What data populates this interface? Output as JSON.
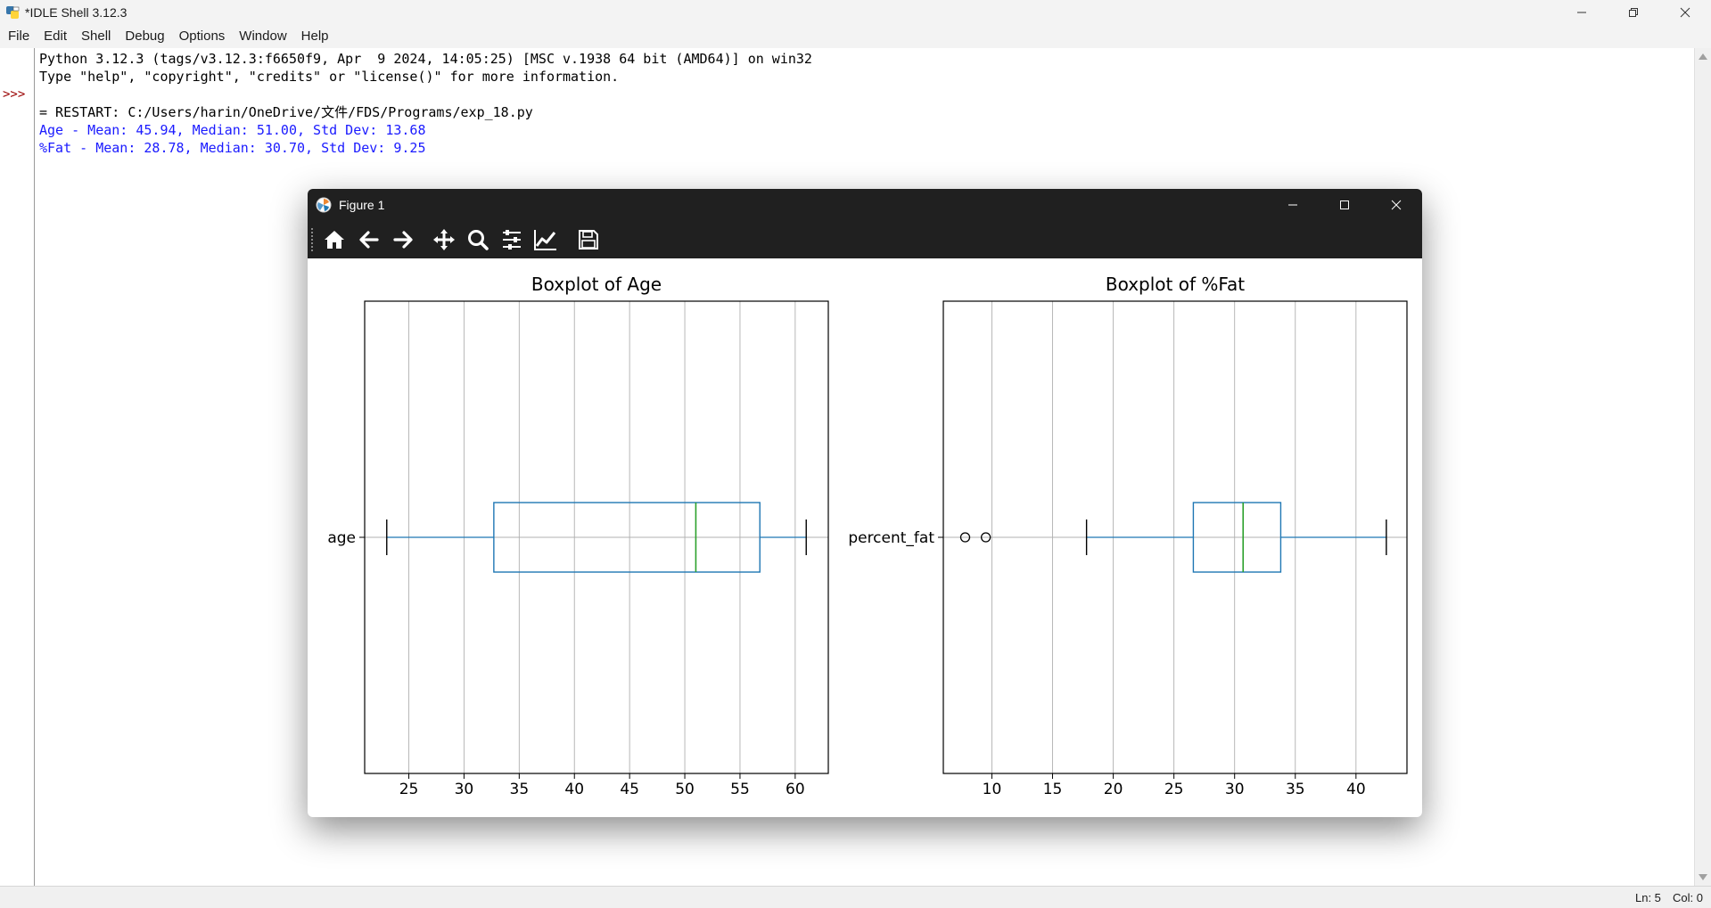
{
  "idle": {
    "window_title": "*IDLE Shell 3.12.3",
    "menu": [
      "File",
      "Edit",
      "Shell",
      "Debug",
      "Options",
      "Window",
      "Help"
    ],
    "prompt": ">>>",
    "banner_line1": "Python 3.12.3 (tags/v3.12.3:f6650f9, Apr  9 2024, 14:05:25) [MSC v.1938 64 bit (AMD64)] on win32",
    "banner_line2": "Type \"help\", \"copyright\", \"credits\" or \"license()\" for more information.",
    "restart_line": "= RESTART: C:/Users/harin/OneDrive/文件/FDS/Programs/exp_18.py",
    "output_line1": "Age - Mean: 45.94, Median: 51.00, Std Dev: 13.68",
    "output_line2": "%Fat - Mean: 28.78, Median: 30.70, Std Dev: 9.25",
    "status_ln": "Ln: 5",
    "status_col": "Col: 0"
  },
  "figure": {
    "window_title": "Figure 1",
    "toolbar": [
      "home-icon",
      "back-icon",
      "forward-icon",
      "pan-icon",
      "zoom-icon",
      "subplots-icon",
      "edit-axis-icon",
      "save-icon"
    ]
  },
  "chart_data": [
    {
      "type": "boxplot",
      "orientation": "horizontal",
      "title": "Boxplot of Age",
      "category": "age",
      "xlim": [
        21,
        63
      ],
      "xticks": [
        25,
        30,
        35,
        40,
        45,
        50,
        55,
        60
      ],
      "whisker_low": 23,
      "q1": 32.7,
      "median": 51,
      "q3": 56.8,
      "whisker_high": 61,
      "outliers": [],
      "grid": "x",
      "box_color": "#1f77b4",
      "median_color": "#2ca02c"
    },
    {
      "type": "boxplot",
      "orientation": "horizontal",
      "title": "Boxplot of %Fat",
      "category": "percent_fat",
      "xlim": [
        6,
        44.2
      ],
      "xticks": [
        10,
        15,
        20,
        25,
        30,
        35,
        40
      ],
      "whisker_low": 17.8,
      "q1": 26.6,
      "median": 30.7,
      "q3": 33.8,
      "whisker_high": 42.5,
      "outliers": [
        7.8,
        9.5
      ],
      "grid": "x",
      "box_color": "#1f77b4",
      "median_color": "#2ca02c"
    }
  ]
}
